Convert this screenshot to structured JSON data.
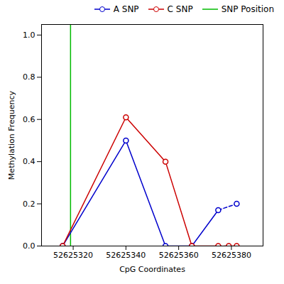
{
  "chart_data": {
    "type": "line",
    "xlabel": "CpG Coordinates",
    "ylabel": "Methylation Frequency",
    "series": [
      {
        "name": "A SNP",
        "color": "#0000CC",
        "marker": "circle",
        "x": [
          52625316,
          52625340,
          52625355,
          52625365,
          52625375,
          52625382
        ],
        "values": [
          0.0,
          0.5,
          0.0,
          0.0,
          0.17,
          0.2
        ]
      },
      {
        "name": "C SNP",
        "color": "#CC0000",
        "marker": "circle",
        "x": [
          52625316,
          52625340,
          52625355,
          52625365,
          52625375,
          52625379,
          52625382
        ],
        "values": [
          0.0,
          0.61,
          0.4,
          0.0,
          0.0,
          0.0,
          0.0
        ]
      }
    ],
    "reference_lines": [
      {
        "name": "SNP Position",
        "x": 52625319,
        "color": "#00BB00"
      }
    ],
    "xlim": [
      52625308,
      52625392
    ],
    "ylim": [
      0.0,
      1.05
    ],
    "xticks": [
      52625320,
      52625340,
      52625360,
      52625380
    ],
    "yticks": [
      {
        "value": 0.0,
        "label": "0.0"
      },
      0.2,
      0.4,
      0.6,
      0.8,
      {
        "value": 1.0,
        "label": "1.0"
      }
    ],
    "grid": false,
    "legend": "upper right"
  }
}
